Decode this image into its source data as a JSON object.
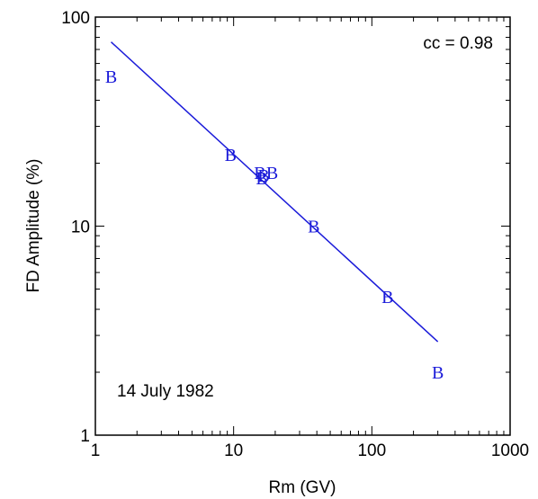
{
  "chart_data": {
    "type": "scatter",
    "title": "",
    "xlabel": "Rm (GV)",
    "ylabel": "FD Amplitude (%)",
    "xscale": "log",
    "yscale": "log",
    "xlim": [
      1,
      1000
    ],
    "ylim": [
      1,
      100
    ],
    "x_ticks": [
      {
        "value": 1,
        "label": "1"
      },
      {
        "value": 10,
        "label": "10"
      },
      {
        "value": 100,
        "label": "100"
      },
      {
        "value": 1000,
        "label": "1000"
      }
    ],
    "y_ticks": [
      {
        "value": 1,
        "label": "1"
      },
      {
        "value": 10,
        "label": "10"
      },
      {
        "value": 100,
        "label": "100"
      }
    ],
    "grid": false,
    "legend": "none",
    "marker": "B",
    "color": "#1a1ad9",
    "points": [
      {
        "x": 1.3,
        "y": 52
      },
      {
        "x": 9.5,
        "y": 22
      },
      {
        "x": 15.5,
        "y": 18
      },
      {
        "x": 16.5,
        "y": 17.5
      },
      {
        "x": 19,
        "y": 18
      },
      {
        "x": 16,
        "y": 17
      },
      {
        "x": 38,
        "y": 10
      },
      {
        "x": 130,
        "y": 4.6
      },
      {
        "x": 300,
        "y": 2
      }
    ],
    "fit_line": {
      "x": [
        1.3,
        300
      ],
      "y": [
        76,
        2.8
      ]
    },
    "annotations": [
      {
        "id": "cc",
        "text": "cc = 0.98"
      },
      {
        "id": "date",
        "text": "14 July 1982"
      }
    ]
  }
}
